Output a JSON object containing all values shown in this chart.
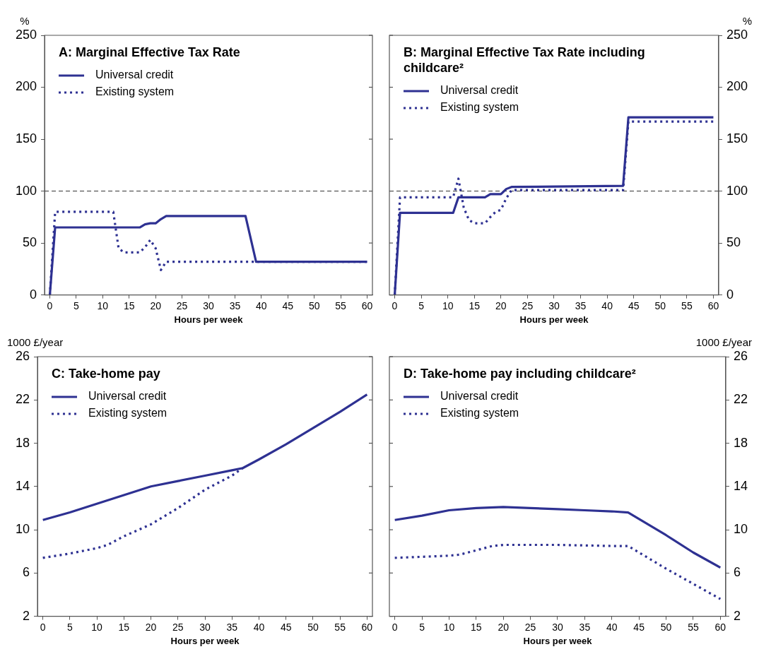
{
  "chart_data": [
    {
      "type": "line",
      "title": "A: Marginal Effective Tax Rate",
      "xlabel": "Hours per week",
      "ylabel": "%",
      "xlim": [
        -1,
        61
      ],
      "xticks": [
        0,
        5,
        10,
        15,
        20,
        25,
        30,
        35,
        40,
        45,
        50,
        55,
        60
      ],
      "ylim": [
        0,
        250
      ],
      "yticks": [
        0,
        50,
        100,
        150,
        200,
        250
      ],
      "grid": false,
      "legend": "top left",
      "marker": "none",
      "ref_lines": [
        {
          "axis": "y",
          "value": 100,
          "color": "#333333",
          "line_style": "dashed"
        }
      ],
      "series": [
        {
          "name": "Universal credit",
          "color": "#2e3192",
          "line_style": "solid",
          "x": [
            0,
            1,
            17,
            18,
            19,
            20,
            21,
            22,
            37,
            39,
            60
          ],
          "values": [
            0,
            65,
            65,
            68,
            69,
            69,
            73,
            76,
            76,
            32,
            32
          ]
        },
        {
          "name": "Existing system",
          "color": "#2e3192",
          "line_style": "dotted",
          "x": [
            0,
            1,
            12,
            13,
            14,
            17,
            18,
            19,
            20,
            21,
            22,
            60
          ],
          "values": [
            0,
            80,
            80,
            45,
            41,
            41,
            46,
            53,
            45,
            24,
            32,
            32
          ]
        }
      ]
    },
    {
      "type": "line",
      "title": "B: Marginal Effective Tax Rate including childcare²",
      "xlabel": "Hours per week",
      "ylabel": "%",
      "xlim": [
        -1,
        61
      ],
      "xticks": [
        0,
        5,
        10,
        15,
        20,
        25,
        30,
        35,
        40,
        45,
        50,
        55,
        60
      ],
      "ylim": [
        0,
        250
      ],
      "yticks": [
        0,
        50,
        100,
        150,
        200,
        250
      ],
      "grid": false,
      "legend": "top left",
      "marker": "none",
      "ref_lines": [
        {
          "axis": "y",
          "value": 100,
          "color": "#333333",
          "line_style": "dashed"
        }
      ],
      "series": [
        {
          "name": "Universal credit",
          "color": "#2e3192",
          "line_style": "solid",
          "x": [
            0,
            1,
            11,
            12,
            17,
            18,
            20,
            21,
            22,
            43,
            44,
            60
          ],
          "values": [
            0,
            79,
            79,
            94,
            94,
            97,
            97,
            102,
            104,
            105,
            171,
            171
          ]
        },
        {
          "name": "Existing system",
          "color": "#2e3192",
          "line_style": "dotted",
          "x": [
            0,
            1,
            11,
            12,
            13,
            14,
            15,
            17,
            18,
            19,
            20,
            21,
            22,
            43,
            44,
            60
          ],
          "values": [
            0,
            94,
            94,
            112,
            84,
            72,
            69,
            69,
            75,
            80,
            82,
            93,
            101,
            101,
            167,
            167
          ]
        }
      ]
    },
    {
      "type": "line",
      "title": "C: Take-home pay",
      "xlabel": "Hours per week",
      "ylabel": "1000 £/year",
      "xlim": [
        -1,
        61
      ],
      "xticks": [
        0,
        5,
        10,
        15,
        20,
        25,
        30,
        35,
        40,
        45,
        50,
        55,
        60
      ],
      "ylim": [
        2,
        26
      ],
      "yticks": [
        2,
        6,
        10,
        14,
        18,
        22,
        26
      ],
      "grid": false,
      "legend": "top left",
      "marker": "none",
      "series": [
        {
          "name": "Universal credit",
          "color": "#2e3192",
          "line_style": "solid",
          "x": [
            0,
            5,
            10,
            15,
            20,
            25,
            30,
            35,
            37,
            40,
            45,
            50,
            55,
            60
          ],
          "values": [
            10.9,
            11.6,
            12.4,
            13.2,
            14.0,
            14.5,
            15.0,
            15.5,
            15.7,
            16.5,
            17.9,
            19.4,
            20.9,
            22.5
          ]
        },
        {
          "name": "Existing system",
          "color": "#2e3192",
          "line_style": "dotted",
          "x": [
            0,
            5,
            10,
            12,
            15,
            20,
            25,
            30,
            35,
            37
          ],
          "values": [
            7.4,
            7.8,
            8.3,
            8.6,
            9.4,
            10.5,
            12.0,
            13.7,
            15.0,
            15.7
          ]
        }
      ]
    },
    {
      "type": "line",
      "title": "D: Take-home pay including childcare²",
      "xlabel": "Hours per week",
      "ylabel": "1000 £/year",
      "xlim": [
        -1,
        61
      ],
      "xticks": [
        0,
        5,
        10,
        15,
        20,
        25,
        30,
        35,
        40,
        45,
        50,
        55,
        60
      ],
      "ylim": [
        2,
        26
      ],
      "yticks": [
        2,
        6,
        10,
        14,
        18,
        22,
        26
      ],
      "grid": false,
      "legend": "top left",
      "marker": "none",
      "series": [
        {
          "name": "Universal credit",
          "color": "#2e3192",
          "line_style": "solid",
          "x": [
            0,
            5,
            10,
            15,
            20,
            25,
            30,
            35,
            40,
            43,
            50,
            55,
            60
          ],
          "values": [
            10.9,
            11.3,
            11.8,
            12.0,
            12.1,
            12.0,
            11.9,
            11.8,
            11.7,
            11.6,
            9.5,
            7.9,
            6.5
          ]
        },
        {
          "name": "Existing system",
          "color": "#2e3192",
          "line_style": "dotted",
          "x": [
            0,
            5,
            10,
            12,
            15,
            18,
            20,
            30,
            40,
            43,
            50,
            55,
            60
          ],
          "values": [
            7.4,
            7.5,
            7.6,
            7.7,
            8.1,
            8.5,
            8.6,
            8.6,
            8.5,
            8.5,
            6.4,
            5.0,
            3.6
          ]
        }
      ]
    }
  ]
}
